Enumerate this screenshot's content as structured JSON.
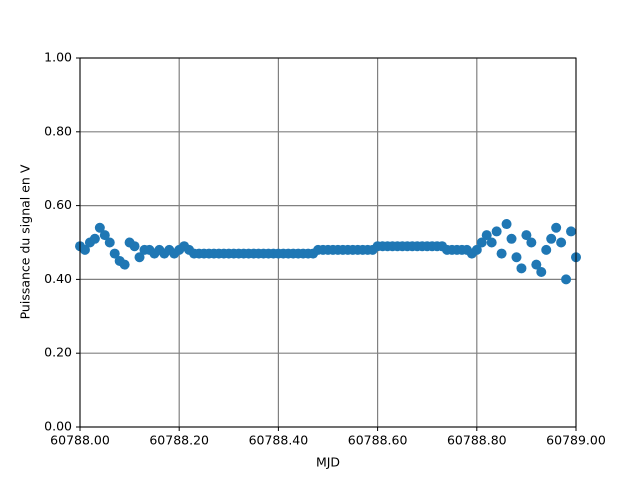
{
  "chart_data": {
    "type": "scatter",
    "xlabel": "MJD",
    "ylabel": "Puissance du signal en V",
    "color": "#1f77b4",
    "grid": true,
    "xlim": [
      60788.0,
      60789.0
    ],
    "ylim": [
      0,
      1
    ],
    "xticks": [
      {
        "value": 60788.0,
        "label": "60788.00"
      },
      {
        "value": 60788.2,
        "label": "60788.20"
      },
      {
        "value": 60788.4,
        "label": "60788.40"
      },
      {
        "value": 60788.6,
        "label": "60788.60"
      },
      {
        "value": 60788.8,
        "label": "60788.80"
      },
      {
        "value": 60789.0,
        "label": "60789.00"
      }
    ],
    "yticks": [
      {
        "value": 0,
        "label": "0.00"
      },
      {
        "value": 0.2,
        "label": "0.20"
      },
      {
        "value": 0.4,
        "label": "0.40"
      },
      {
        "value": 0.6,
        "label": "0.60"
      },
      {
        "value": 0.8,
        "label": "0.80"
      },
      {
        "value": 1,
        "label": "1.00"
      }
    ],
    "x": [
      60788.0,
      60788.01,
      60788.02,
      60788.03,
      60788.04,
      60788.05,
      60788.06,
      60788.07,
      60788.08,
      60788.09,
      60788.1,
      60788.11,
      60788.12,
      60788.13,
      60788.14,
      60788.15,
      60788.16,
      60788.17,
      60788.18,
      60788.19,
      60788.2,
      60788.21,
      60788.22,
      60788.23,
      60788.24,
      60788.25,
      60788.26,
      60788.27,
      60788.28,
      60788.29,
      60788.3,
      60788.31,
      60788.32,
      60788.33,
      60788.34,
      60788.35,
      60788.36,
      60788.37,
      60788.38,
      60788.39,
      60788.4,
      60788.41,
      60788.42,
      60788.43,
      60788.44,
      60788.45,
      60788.46,
      60788.47,
      60788.48,
      60788.49,
      60788.5,
      60788.51,
      60788.52,
      60788.53,
      60788.54,
      60788.55,
      60788.56,
      60788.57,
      60788.58,
      60788.59,
      60788.6,
      60788.61,
      60788.62,
      60788.63,
      60788.64,
      60788.65,
      60788.66,
      60788.67,
      60788.68,
      60788.69,
      60788.7,
      60788.71,
      60788.72,
      60788.73,
      60788.74,
      60788.75,
      60788.76,
      60788.77,
      60788.78,
      60788.79,
      60788.8,
      60788.81,
      60788.82,
      60788.83,
      60788.84,
      60788.85,
      60788.86,
      60788.87,
      60788.88,
      60788.89,
      60788.9,
      60788.91,
      60788.92,
      60788.93,
      60788.94,
      60788.95,
      60788.96,
      60788.97,
      60788.98,
      60788.99,
      60789.0
    ],
    "values": [
      0.49,
      0.48,
      0.5,
      0.51,
      0.54,
      0.52,
      0.5,
      0.47,
      0.45,
      0.44,
      0.5,
      0.49,
      0.46,
      0.48,
      0.48,
      0.47,
      0.48,
      0.47,
      0.48,
      0.47,
      0.48,
      0.49,
      0.48,
      0.47,
      0.47,
      0.47,
      0.47,
      0.47,
      0.47,
      0.47,
      0.47,
      0.47,
      0.47,
      0.47,
      0.47,
      0.47,
      0.47,
      0.47,
      0.47,
      0.47,
      0.47,
      0.47,
      0.47,
      0.47,
      0.47,
      0.47,
      0.47,
      0.47,
      0.48,
      0.48,
      0.48,
      0.48,
      0.48,
      0.48,
      0.48,
      0.48,
      0.48,
      0.48,
      0.48,
      0.48,
      0.49,
      0.49,
      0.49,
      0.49,
      0.49,
      0.49,
      0.49,
      0.49,
      0.49,
      0.49,
      0.49,
      0.49,
      0.49,
      0.49,
      0.48,
      0.48,
      0.48,
      0.48,
      0.48,
      0.47,
      0.48,
      0.5,
      0.52,
      0.5,
      0.53,
      0.47,
      0.55,
      0.51,
      0.46,
      0.43,
      0.52,
      0.5,
      0.44,
      0.42,
      0.48,
      0.51,
      0.54,
      0.5,
      0.4,
      0.53,
      0.46
    ]
  }
}
